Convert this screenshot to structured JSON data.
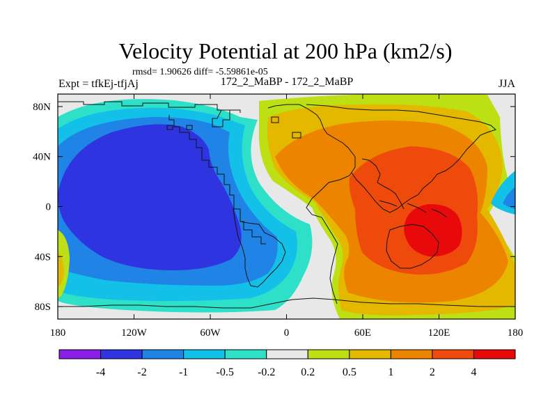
{
  "chart_data": {
    "type": "heatmap",
    "title": "Velocity Potential at 200 hPa (km2/s)",
    "stats_line": "rmsd= 1.90626 diff= -5.59861e-05",
    "left_label": "Expt = tfkEj-tfjAj",
    "center_label": "172_2_MaBP - 172_2_MaBP",
    "right_label": "JJA",
    "x_ticks": [
      "180",
      "120W",
      "60W",
      "0",
      "60E",
      "120E",
      "180"
    ],
    "x_tick_values": [
      -180,
      -120,
      -60,
      0,
      60,
      120,
      180
    ],
    "y_ticks": [
      "80N",
      "40N",
      "0",
      "40S",
      "80S"
    ],
    "y_tick_values": [
      80,
      40,
      0,
      -40,
      -80
    ],
    "xlim": [
      -180,
      180
    ],
    "ylim": [
      -90,
      90
    ],
    "colorbar": {
      "labels": [
        "-4",
        "-2",
        "-1",
        "-0.5",
        "-0.2",
        "0.2",
        "0.5",
        "1",
        "2",
        "4"
      ],
      "colors": [
        "#8a1ee8",
        "#2e35e0",
        "#1f84e6",
        "#12c0e8",
        "#2ee0c8",
        "#e8e8e8",
        "#bde015",
        "#e5b800",
        "#ec8400",
        "#ee4a0c",
        "#e80a0a"
      ]
    },
    "fields": [
      {
        "name": "negative_center",
        "sign": "negative",
        "center_lon": -110,
        "center_lat": 5,
        "levels": [
          -0.2,
          -0.5,
          -1,
          -2
        ],
        "level_colors": [
          "#2ee0c8",
          "#12c0e8",
          "#1f84e6",
          "#2e35e0"
        ]
      },
      {
        "name": "positive_center",
        "sign": "positive",
        "center_lon": 115,
        "center_lat": -10,
        "levels": [
          0.2,
          0.5,
          1,
          2,
          4
        ],
        "level_colors": [
          "#bde015",
          "#e5b800",
          "#ec8400",
          "#ee4a0c",
          "#e80a0a"
        ]
      }
    ],
    "grid": false,
    "legend": "bottom"
  }
}
